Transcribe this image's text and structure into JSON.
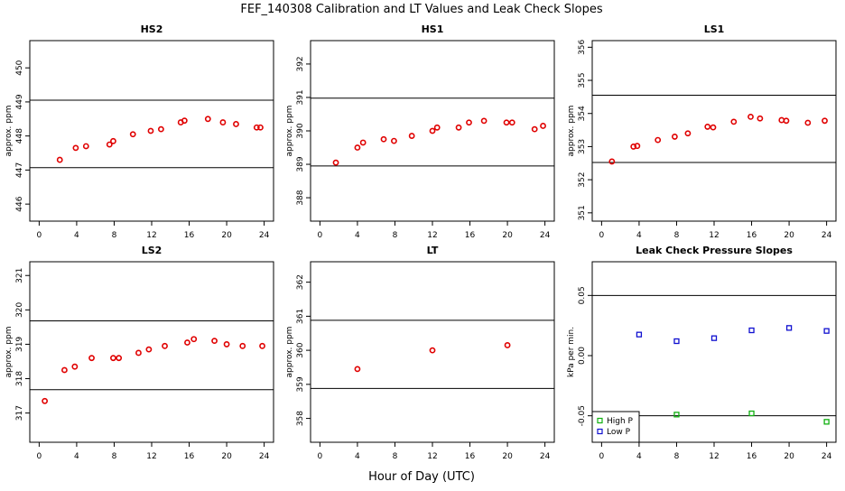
{
  "figure": {
    "title": "FEF_140308  Calibration and LT Values and Leak Check Slopes",
    "xlabel": "Hour of Day (UTC)"
  },
  "colors": {
    "red": "#e00000",
    "blue": "#1010d0",
    "green": "#10b010",
    "line": "#000000"
  },
  "chart_data": [
    {
      "type": "scatter",
      "title": "HS2",
      "ylabel": "approx. ppm",
      "xlim": [
        -1,
        25
      ],
      "ylim": [
        445.5,
        450.8
      ],
      "xticks": [
        "0",
        "4",
        "8",
        "12",
        "16",
        "20",
        "24"
      ],
      "yticks": [
        "446",
        "447",
        "448",
        "449",
        "450"
      ],
      "hlines": [
        449.05,
        447.07
      ],
      "series": [
        {
          "color": "red",
          "marker": "circle",
          "x": [
            2.2,
            3.9,
            5.0,
            7.5,
            7.9,
            10.0,
            11.9,
            13.0,
            15.1,
            15.5,
            18.0,
            19.6,
            21.0,
            23.2,
            23.6
          ],
          "y": [
            447.3,
            447.65,
            447.7,
            447.75,
            447.85,
            448.05,
            448.15,
            448.2,
            448.4,
            448.45,
            448.5,
            448.4,
            448.35,
            448.25,
            448.25
          ]
        }
      ]
    },
    {
      "type": "scatter",
      "title": "HS1",
      "ylabel": "approx. ppm",
      "xlim": [
        -1,
        25
      ],
      "ylim": [
        387.3,
        392.7
      ],
      "xticks": [
        "0",
        "4",
        "8",
        "12",
        "16",
        "20",
        "24"
      ],
      "yticks": [
        "388",
        "389",
        "390",
        "391",
        "392"
      ],
      "hlines": [
        390.98,
        388.95
      ],
      "series": [
        {
          "color": "red",
          "marker": "circle",
          "x": [
            1.7,
            4.0,
            4.6,
            6.8,
            7.9,
            9.8,
            12.0,
            12.5,
            14.8,
            15.9,
            17.5,
            19.9,
            20.5,
            22.9,
            23.8
          ],
          "y": [
            389.05,
            389.5,
            389.65,
            389.75,
            389.7,
            389.85,
            390.0,
            390.1,
            390.1,
            390.25,
            390.3,
            390.25,
            390.25,
            390.05,
            390.15
          ]
        }
      ]
    },
    {
      "type": "scatter",
      "title": "LS1",
      "ylabel": "approx. ppm",
      "xlim": [
        -1,
        25
      ],
      "ylim": [
        350.75,
        356.2
      ],
      "xticks": [
        "0",
        "4",
        "8",
        "12",
        "16",
        "20",
        "24"
      ],
      "yticks": [
        "351",
        "352",
        "353",
        "354",
        "355",
        "356"
      ],
      "hlines": [
        354.55,
        352.52
      ],
      "series": [
        {
          "color": "red",
          "marker": "circle",
          "x": [
            1.1,
            3.4,
            3.8,
            6.0,
            7.8,
            9.2,
            11.3,
            11.9,
            14.1,
            15.9,
            16.9,
            19.2,
            19.7,
            22.0,
            23.8
          ],
          "y": [
            352.55,
            353.0,
            353.02,
            353.2,
            353.3,
            353.4,
            353.6,
            353.58,
            353.75,
            353.9,
            353.85,
            353.8,
            353.78,
            353.72,
            353.78
          ]
        }
      ]
    },
    {
      "type": "scatter",
      "title": "LS2",
      "ylabel": "approx. ppm",
      "xlim": [
        -1,
        25
      ],
      "ylim": [
        316.15,
        321.4
      ],
      "xticks": [
        "0",
        "4",
        "8",
        "12",
        "16",
        "20",
        "24"
      ],
      "yticks": [
        "317",
        "318",
        "319",
        "320",
        "321"
      ],
      "hlines": [
        319.68,
        317.68
      ],
      "series": [
        {
          "color": "red",
          "marker": "circle",
          "x": [
            0.6,
            2.7,
            3.8,
            5.6,
            7.9,
            8.5,
            10.6,
            11.7,
            13.4,
            15.8,
            16.5,
            18.7,
            20.0,
            21.7,
            23.8
          ],
          "y": [
            317.35,
            318.25,
            318.35,
            318.6,
            318.6,
            318.6,
            318.75,
            318.85,
            318.95,
            319.05,
            319.15,
            319.1,
            319.0,
            318.95,
            318.95
          ]
        }
      ]
    },
    {
      "type": "scatter",
      "title": "LT",
      "ylabel": "approx. ppm",
      "xlim": [
        -1,
        25
      ],
      "ylim": [
        357.3,
        362.6
      ],
      "xticks": [
        "0",
        "4",
        "8",
        "12",
        "16",
        "20",
        "24"
      ],
      "yticks": [
        "358",
        "359",
        "360",
        "361",
        "362"
      ],
      "hlines": [
        360.88,
        358.88
      ],
      "series": [
        {
          "color": "red",
          "marker": "circle",
          "x": [
            4.0,
            12.0,
            20.0
          ],
          "y": [
            359.45,
            360.0,
            360.15
          ]
        }
      ]
    },
    {
      "type": "scatter",
      "title": "Leak Check Pressure Slopes",
      "ylabel": "kPa per min.",
      "xlim": [
        -1,
        25
      ],
      "ylim": [
        -0.072,
        0.078
      ],
      "xticks": [
        "0",
        "4",
        "8",
        "12",
        "16",
        "20",
        "24"
      ],
      "yticks": [
        "-0.05",
        "0.00",
        "0.05"
      ],
      "hlines": [
        0.05,
        -0.05
      ],
      "legend_position": "bottom-left",
      "series": [
        {
          "name": "High P",
          "color": "green",
          "marker": "square",
          "x": [
            8.0,
            16.0,
            24.0
          ],
          "y": [
            -0.049,
            -0.048,
            -0.055
          ]
        },
        {
          "name": "Low P",
          "color": "blue",
          "marker": "square",
          "x": [
            4.0,
            8.0,
            12.0,
            16.0,
            20.0,
            24.0
          ],
          "y": [
            0.0175,
            0.012,
            0.0145,
            0.021,
            0.023,
            0.0205
          ]
        }
      ]
    }
  ]
}
